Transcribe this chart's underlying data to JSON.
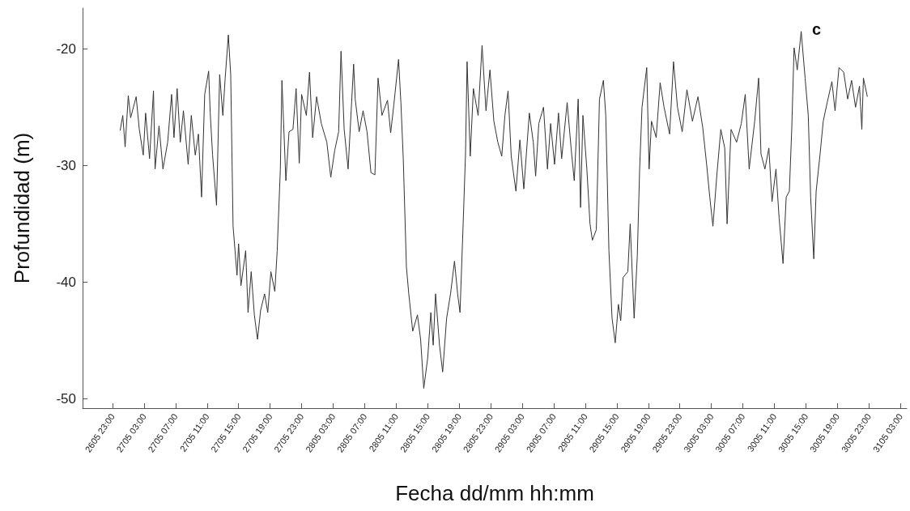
{
  "chart_data": {
    "type": "line",
    "xlabel": "Fecha dd/mm hh:mm",
    "ylabel": "Profundidad (m)",
    "annotations": [
      "c"
    ],
    "xlim": [
      "--05-26T19:12",
      "--05-31T03:48"
    ],
    "xticks": [
      {
        "value": "--05-26T23:00",
        "label": "2605 23:00"
      },
      {
        "value": "--05-27T03:00",
        "label": "2705 03:00"
      },
      {
        "value": "--05-27T07:00",
        "label": "2705 07:00"
      },
      {
        "value": "--05-27T11:00",
        "label": "2705 11:00"
      },
      {
        "value": "--05-27T15:00",
        "label": "2705 15:00"
      },
      {
        "value": "--05-27T19:00",
        "label": "2705 19:00"
      },
      {
        "value": "--05-27T23:00",
        "label": "2705 23:00"
      },
      {
        "value": "--05-28T03:00",
        "label": "2805 03:00"
      },
      {
        "value": "--05-28T07:00",
        "label": "2805 07:00"
      },
      {
        "value": "--05-28T11:00",
        "label": "2805 11:00"
      },
      {
        "value": "--05-28T15:00",
        "label": "2805 15:00"
      },
      {
        "value": "--05-28T19:00",
        "label": "2805 19:00"
      },
      {
        "value": "--05-28T23:00",
        "label": "2805 23:00"
      },
      {
        "value": "--05-29T03:00",
        "label": "2905 03:00"
      },
      {
        "value": "--05-29T07:00",
        "label": "2905 07:00"
      },
      {
        "value": "--05-29T11:00",
        "label": "2905 11:00"
      },
      {
        "value": "--05-29T15:00",
        "label": "2905 15:00"
      },
      {
        "value": "--05-29T19:00",
        "label": "2905 19:00"
      },
      {
        "value": "--05-29T23:00",
        "label": "2905 23:00"
      },
      {
        "value": "--05-30T03:00",
        "label": "3005 03:00"
      },
      {
        "value": "--05-30T07:00",
        "label": "3005 07:00"
      },
      {
        "value": "--05-30T11:00",
        "label": "3005 11:00"
      },
      {
        "value": "--05-30T15:00",
        "label": "3005 15:00"
      },
      {
        "value": "--05-30T19:00",
        "label": "3005 19:00"
      },
      {
        "value": "--05-30T23:00",
        "label": "3005 23:00"
      },
      {
        "value": "--05-31T03:00",
        "label": "3105 03:00"
      }
    ],
    "ylim": [
      -50.8,
      -16.5
    ],
    "yticks": [
      -50,
      -40,
      -30,
      -20
    ],
    "grid": false,
    "marker": "none",
    "line_style": "solid",
    "series": [
      {
        "color": "#333333",
        "x": [
          "--05-26T23:58",
          "--05-27T00:18",
          "--05-27T00:36",
          "--05-27T01:00",
          "--05-27T01:18",
          "--05-27T02:00",
          "--05-27T02:24",
          "--05-27T02:54",
          "--05-27T03:12",
          "--05-27T03:42",
          "--05-27T04:12",
          "--05-27T04:24",
          "--05-27T04:54",
          "--05-27T05:24",
          "--05-27T06:00",
          "--05-27T06:30",
          "--05-27T06:48",
          "--05-27T07:12",
          "--05-27T07:36",
          "--05-27T08:00",
          "--05-27T08:36",
          "--05-27T09:00",
          "--05-27T09:30",
          "--05-27T09:54",
          "--05-27T10:18",
          "--05-27T10:42",
          "--05-27T11:12",
          "--05-27T11:24",
          "--05-27T11:42",
          "--05-27T12:12",
          "--05-27T12:36",
          "--05-27T13:00",
          "--05-27T13:18",
          "--05-27T13:42",
          "--05-27T14:00",
          "--05-27T14:18",
          "--05-27T14:48",
          "--05-27T15:00",
          "--05-27T15:18",
          "--05-27T15:54",
          "--05-27T16:12",
          "--05-27T16:36",
          "--05-27T17:00",
          "--05-27T17:24",
          "--05-27T17:48",
          "--05-27T18:18",
          "--05-27T18:42",
          "--05-27T19:06",
          "--05-27T19:36",
          "--05-27T19:54",
          "--05-27T20:18",
          "--05-27T20:30",
          "--05-27T21:00",
          "--05-27T21:24",
          "--05-27T21:54",
          "--05-27T22:18",
          "--05-27T22:42",
          "--05-27T23:00",
          "--05-27T23:36",
          "--05-28T00:00",
          "--05-28T00:24",
          "--05-28T00:54",
          "--05-28T01:30",
          "--05-28T02:12",
          "--05-28T02:42",
          "--05-28T03:12",
          "--05-28T03:42",
          "--05-28T04:00",
          "--05-28T04:24",
          "--05-28T04:54",
          "--05-28T05:36",
          "--05-28T05:48",
          "--05-28T06:18",
          "--05-28T06:48",
          "--05-28T07:18",
          "--05-28T07:48",
          "--05-28T08:18",
          "--05-28T08:42",
          "--05-28T09:12",
          "--05-28T09:54",
          "--05-28T10:18",
          "--05-28T10:42",
          "--05-28T11:18",
          "--05-28T11:36",
          "--05-28T11:54",
          "--05-28T12:18",
          "--05-28T12:36",
          "--05-28T13:06",
          "--05-28T13:42",
          "--05-28T14:06",
          "--05-28T14:30",
          "--05-28T15:00",
          "--05-28T15:24",
          "--05-28T15:42",
          "--05-28T16:00",
          "--05-28T16:30",
          "--05-28T16:54",
          "--05-28T17:24",
          "--05-28T17:54",
          "--05-28T18:24",
          "--05-28T18:48",
          "--05-28T19:06",
          "--05-28T19:30",
          "--05-28T19:48",
          "--05-28T20:00",
          "--05-28T20:24",
          "--05-28T20:48",
          "--05-28T21:24",
          "--05-28T21:54",
          "--05-28T22:24",
          "--05-28T22:54",
          "--05-28T23:24",
          "--05-28T23:54",
          "--05-29T00:24",
          "--05-29T00:48",
          "--05-29T01:12",
          "--05-29T01:36",
          "--05-29T02:12",
          "--05-29T02:42",
          "--05-29T03:12",
          "--05-29T03:54",
          "--05-29T04:24",
          "--05-29T04:42",
          "--05-29T05:06",
          "--05-29T05:42",
          "--05-29T06:12",
          "--05-29T06:36",
          "--05-29T07:06",
          "--05-29T07:36",
          "--05-29T08:00",
          "--05-29T08:42",
          "--05-29T09:12",
          "--05-29T09:36",
          "--05-29T10:06",
          "--05-29T10:24",
          "--05-29T10:42",
          "--05-29T11:12",
          "--05-29T11:36",
          "--05-29T11:54",
          "--05-29T12:24",
          "--05-29T12:48",
          "--05-29T13:18",
          "--05-29T13:36",
          "--05-29T14:00",
          "--05-29T14:24",
          "--05-29T14:48",
          "--05-29T15:12",
          "--05-29T15:30",
          "--05-29T15:48",
          "--05-29T16:24",
          "--05-29T16:42",
          "--05-29T17:12",
          "--05-29T17:36",
          "--05-29T17:54",
          "--05-29T18:12",
          "--05-29T18:48",
          "--05-29T19:06",
          "--05-29T19:24",
          "--05-29T20:00",
          "--05-29T20:30",
          "--05-29T21:00",
          "--05-29T21:42",
          "--05-29T22:12",
          "--05-29T22:42",
          "--05-29T23:18",
          "--05-29T23:54",
          "--05-30T00:36",
          "--05-30T01:18",
          "--05-30T01:54",
          "--05-30T02:24",
          "--05-30T02:48",
          "--05-30T03:12",
          "--05-30T03:42",
          "--05-30T04:12",
          "--05-30T04:42",
          "--05-30T05:00",
          "--05-30T05:30",
          "--05-30T06:12",
          "--05-30T06:48",
          "--05-30T07:18",
          "--05-30T07:48",
          "--05-30T08:30",
          "--05-30T09:00",
          "--05-30T09:18",
          "--05-30T09:48",
          "--05-30T10:18",
          "--05-30T10:42",
          "--05-30T11:12",
          "--05-30T11:36",
          "--05-30T12:06",
          "--05-30T12:30",
          "--05-30T12:54",
          "--05-30T13:12",
          "--05-30T13:30",
          "--05-30T13:54",
          "--05-30T14:24",
          "--05-30T14:54",
          "--05-30T15:18",
          "--05-30T15:36",
          "--05-30T16:00",
          "--05-30T16:18",
          "--05-30T16:48",
          "--05-30T17:12",
          "--05-30T17:42",
          "--05-30T18:18",
          "--05-30T18:42",
          "--05-30T19:12",
          "--05-30T19:48",
          "--05-30T20:18",
          "--05-30T20:48",
          "--05-30T21:18",
          "--05-30T21:48",
          "--05-30T22:06",
          "--05-30T22:18",
          "--05-30T22:48"
        ],
        "values": [
          -27.0,
          -25.7,
          -28.4,
          -24.0,
          -25.9,
          -24.1,
          -26.9,
          -29.1,
          -25.5,
          -29.4,
          -23.6,
          -30.3,
          -26.6,
          -30.3,
          -28.0,
          -23.9,
          -27.6,
          -23.4,
          -28.0,
          -25.3,
          -29.9,
          -25.7,
          -29.1,
          -27.3,
          -32.7,
          -23.9,
          -21.9,
          -25.5,
          -29.1,
          -33.4,
          -22.2,
          -25.7,
          -22.5,
          -18.8,
          -22.2,
          -35.2,
          -39.4,
          -36.7,
          -40.3,
          -37.3,
          -42.6,
          -39.1,
          -42.8,
          -44.9,
          -42.4,
          -41.0,
          -42.6,
          -39.1,
          -40.8,
          -37.3,
          -30.3,
          -22.7,
          -31.3,
          -27.1,
          -26.9,
          -23.4,
          -29.8,
          -23.9,
          -25.7,
          -22.0,
          -27.6,
          -24.1,
          -26.4,
          -28.0,
          -31.0,
          -28.7,
          -27.1,
          -20.2,
          -26.9,
          -30.3,
          -21.3,
          -24.3,
          -27.1,
          -25.3,
          -27.1,
          -30.6,
          -30.8,
          -22.5,
          -25.7,
          -24.4,
          -27.2,
          -24.8,
          -20.9,
          -24.6,
          -29.4,
          -38.7,
          -41.0,
          -44.2,
          -42.8,
          -44.9,
          -49.1,
          -46.5,
          -42.6,
          -45.4,
          -41.0,
          -45.4,
          -47.7,
          -43.1,
          -41.0,
          -38.2,
          -41.0,
          -42.6,
          -35.0,
          -29.0,
          -21.1,
          -29.2,
          -23.4,
          -25.7,
          -19.7,
          -25.3,
          -21.8,
          -26.2,
          -28.0,
          -29.2,
          -25.7,
          -23.6,
          -29.2,
          -32.2,
          -27.8,
          -32.0,
          -25.5,
          -28.0,
          -30.9,
          -26.4,
          -25.0,
          -30.3,
          -26.4,
          -29.9,
          -25.5,
          -29.4,
          -24.6,
          -28.5,
          -31.3,
          -24.3,
          -33.6,
          -25.7,
          -30.3,
          -35.0,
          -36.4,
          -35.5,
          -24.3,
          -22.7,
          -25.7,
          -37.3,
          -43.1,
          -45.2,
          -41.9,
          -43.3,
          -39.6,
          -39.1,
          -35.0,
          -43.1,
          -37.8,
          -30.3,
          -25.0,
          -21.6,
          -30.3,
          -26.2,
          -27.6,
          -22.9,
          -25.0,
          -27.3,
          -21.1,
          -25.0,
          -27.1,
          -23.5,
          -26.2,
          -24.1,
          -26.7,
          -29.9,
          -32.7,
          -35.2,
          -30.8,
          -26.9,
          -28.5,
          -35.0,
          -26.9,
          -28.0,
          -26.4,
          -23.9,
          -30.3,
          -26.2,
          -22.5,
          -29.0,
          -30.3,
          -28.5,
          -33.1,
          -30.3,
          -34.5,
          -38.4,
          -32.7,
          -32.2,
          -26.9,
          -19.9,
          -21.8,
          -18.5,
          -22.5,
          -25.7,
          -32.7,
          -38.0,
          -32.2,
          -29.0,
          -26.2,
          -24.6,
          -22.8,
          -25.3,
          -21.6,
          -22.0,
          -24.3,
          -22.7,
          -25.0,
          -23.2,
          -26.9,
          -22.5,
          -24.1
        ]
      }
    ]
  }
}
